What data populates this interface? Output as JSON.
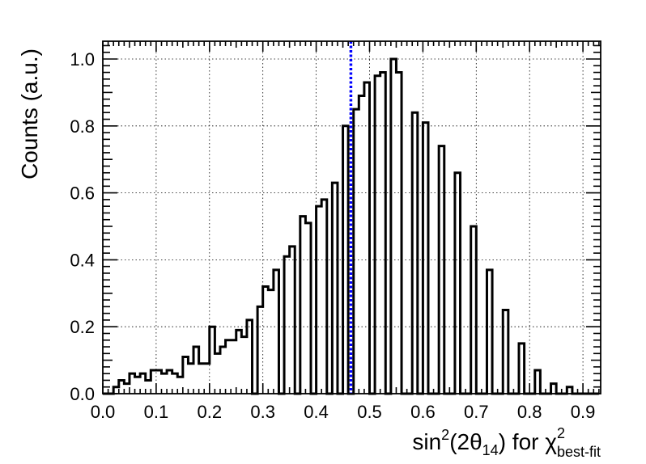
{
  "chart_data": {
    "type": "histogram",
    "ylabel": "Counts (a.u.)",
    "xlabel": {
      "base": "sin",
      "sup1": "2",
      "mid": "(2θ",
      "sub1": "14",
      "after": ") for χ",
      "sup2": "2",
      "sub2": "best-fit"
    },
    "xlim": [
      0.0,
      0.93
    ],
    "ylim": [
      0.0,
      1.05
    ],
    "x_ticks": [
      0.0,
      0.1,
      0.2,
      0.3,
      0.4,
      0.5,
      0.6,
      0.7,
      0.8,
      0.9
    ],
    "x_tick_labels": [
      "0.0",
      "0.1",
      "0.2",
      "0.3",
      "0.4",
      "0.5",
      "0.6",
      "0.7",
      "0.8",
      "0.9"
    ],
    "y_ticks": [
      0.0,
      0.2,
      0.4,
      0.6,
      0.8,
      1.0
    ],
    "y_tick_labels": [
      "0.0",
      "0.2",
      "0.4",
      "0.6",
      "0.8",
      "1.0"
    ],
    "grid": true,
    "bin_start": 0.0,
    "bin_width": 0.01,
    "values": [
      0.0,
      0.0,
      0.02,
      0.04,
      0.03,
      0.06,
      0.05,
      0.06,
      0.04,
      0.07,
      0.07,
      0.06,
      0.07,
      0.06,
      0.05,
      0.11,
      0.09,
      0.14,
      0.09,
      0.09,
      0.2,
      0.12,
      0.14,
      0.16,
      0.16,
      0.19,
      0.17,
      0.22,
      0.0,
      0.26,
      0.32,
      0.31,
      0.37,
      0.0,
      0.41,
      0.44,
      0.0,
      0.53,
      0.51,
      0.0,
      0.56,
      0.58,
      0.0,
      0.63,
      0.0,
      0.8,
      0.0,
      0.85,
      0.89,
      0.93,
      0.0,
      0.95,
      0.96,
      0.0,
      1.0,
      0.96,
      0.0,
      0.0,
      0.84,
      0.0,
      0.81,
      0.0,
      0.0,
      0.74,
      0.0,
      0.0,
      0.66,
      0.0,
      0.0,
      0.5,
      0.0,
      0.0,
      0.37,
      0.0,
      0.0,
      0.25,
      0.0,
      0.0,
      0.15,
      0.0,
      0.0,
      0.07,
      0.0,
      0.0,
      0.03,
      0.0,
      0.0,
      0.02,
      0.0,
      0.0,
      0.0,
      0.0,
      0.0
    ],
    "reference_line": {
      "x": 0.465,
      "color": "#0000ff"
    },
    "line_color": "#000000"
  }
}
